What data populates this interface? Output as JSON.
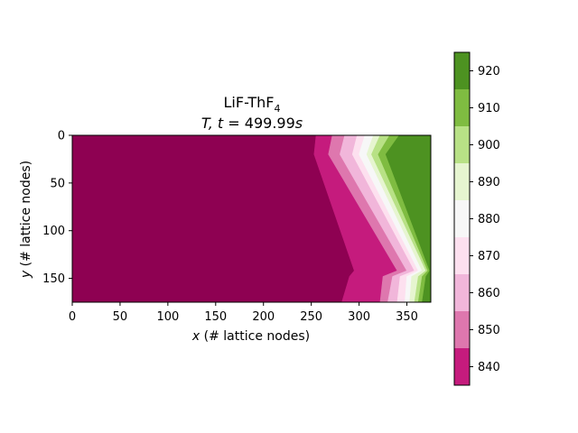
{
  "chart_data": {
    "type": "heatmap",
    "title": {
      "line1_base": "LiF-ThF",
      "line1_sub": "4",
      "line2_prefix": "T, t",
      "line2_eq": " = 499.99",
      "line2_unit": "s"
    },
    "xlabel": {
      "var": "x",
      "text": " (# lattice nodes)"
    },
    "ylabel": {
      "var": "y",
      "text": " (# lattice nodes)"
    },
    "xlim": [
      0,
      375
    ],
    "ylim": [
      175,
      0
    ],
    "y_inverted": true,
    "xticks": [
      0,
      50,
      100,
      150,
      200,
      250,
      300,
      350
    ],
    "yticks": [
      0,
      50,
      100,
      150
    ],
    "colorbar": {
      "ticks": [
        840,
        850,
        860,
        870,
        880,
        890,
        900,
        910,
        920
      ],
      "range": [
        835,
        925
      ],
      "levels": [
        835,
        845,
        855,
        865,
        875,
        885,
        895,
        905,
        915,
        925
      ],
      "colors": [
        "#8e0152",
        "#c51b7d",
        "#de77ae",
        "#f1b6da",
        "#fde0ef",
        "#f7f7f7",
        "#e6f5d0",
        "#b8e186",
        "#7fbc41",
        "#4d9221",
        "#276419"
      ]
    },
    "contour_boundaries_x_at_y": {
      "y": [
        0,
        20,
        142,
        148,
        175
      ],
      "x_by_level": [
        [
          255,
          253,
          295,
          290,
          282
        ],
        [
          272,
          268,
          340,
          325,
          322
        ],
        [
          285,
          280,
          350,
          335,
          330
        ],
        [
          298,
          293,
          358,
          343,
          340
        ],
        [
          306,
          300,
          362,
          350,
          348
        ],
        [
          315,
          308,
          366,
          355,
          353
        ],
        [
          322,
          313,
          370,
          362,
          358
        ],
        [
          332,
          320,
          372,
          366,
          362
        ],
        [
          342,
          328,
          374,
          370,
          366
        ]
      ]
    }
  }
}
